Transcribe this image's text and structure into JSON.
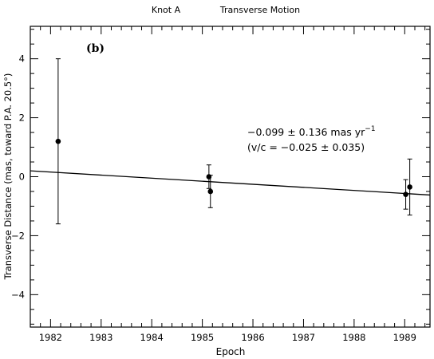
{
  "chart_data": {
    "type": "scatter",
    "title_left": "Knot A",
    "title_right": "Transverse Motion",
    "panel_label": "(b)",
    "xlabel": "Epoch",
    "ylabel": "Transverse Distance (mas, toward P.A. 20.5°)",
    "xlim": [
      1981.6,
      1989.5
    ],
    "ylim": [
      -5.1,
      5.1
    ],
    "x_ticks": [
      1982,
      1983,
      1984,
      1985,
      1986,
      1987,
      1988,
      1989
    ],
    "y_ticks": [
      -4,
      -2,
      0,
      2,
      4
    ],
    "points": [
      {
        "x": 1982.15,
        "y": 1.2,
        "err": 2.8
      },
      {
        "x": 1985.13,
        "y": 0.0,
        "err": 0.4
      },
      {
        "x": 1985.16,
        "y": -0.5,
        "err": 0.55
      },
      {
        "x": 1989.02,
        "y": -0.6,
        "err": 0.5
      },
      {
        "x": 1989.1,
        "y": -0.35,
        "err": 0.95
      }
    ],
    "fit_line": {
      "x": [
        1981.6,
        1989.5
      ],
      "y": [
        0.2,
        -0.62
      ]
    },
    "annotation_line1": "−0.099 ± 0.136 mas yr",
    "annotation_sup": "−1",
    "annotation_line2": "(v/c = −0.025 ± 0.035)"
  }
}
